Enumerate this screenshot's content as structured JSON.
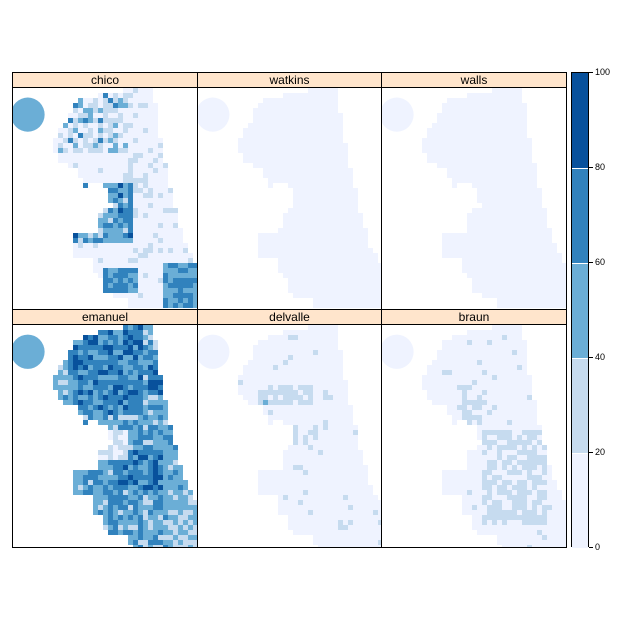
{
  "panels": [
    {
      "label": "chico",
      "pattern": "chico"
    },
    {
      "label": "watkins",
      "pattern": "low"
    },
    {
      "label": "walls",
      "pattern": "low"
    },
    {
      "label": "emanuel",
      "pattern": "emanuel"
    },
    {
      "label": "delvalle",
      "pattern": "delvalle"
    },
    {
      "label": "braun",
      "pattern": "braun"
    }
  ],
  "colorkey": {
    "ticks": [
      "0",
      "20",
      "40",
      "60",
      "80",
      "100"
    ],
    "bins": [
      {
        "range": "0-20",
        "color": "#eff3ff"
      },
      {
        "range": "20-40",
        "color": "#c6dbef"
      },
      {
        "range": "40-60",
        "color": "#6baed6"
      },
      {
        "range": "60-80",
        "color": "#3182bd"
      },
      {
        "range": "80-100",
        "color": "#08519c"
      }
    ]
  }
}
